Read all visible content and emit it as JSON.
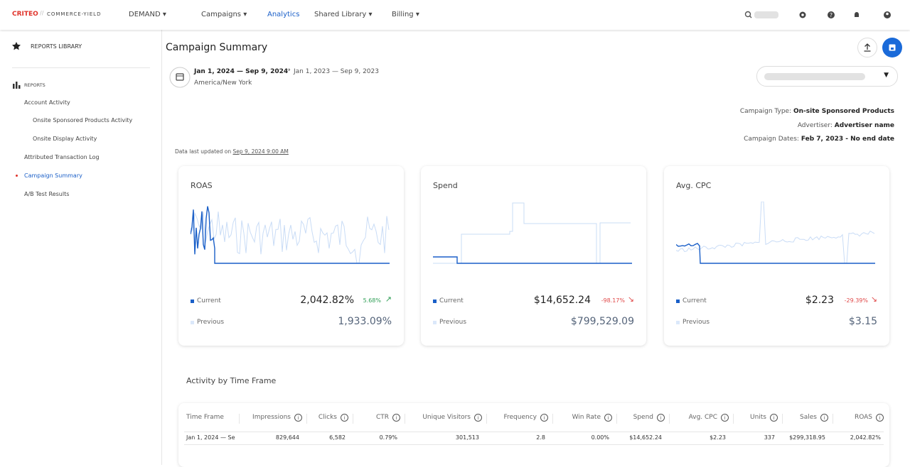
{
  "header": {
    "logo": "CRITEO",
    "product": "COMMERCE-YIELD",
    "menu": "DEMAND",
    "nav": [
      "Campaigns",
      "Analytics",
      "Shared Library",
      "Billing"
    ]
  },
  "sidebar": {
    "library": "REPORTS LIBRARY",
    "section": "REPORTS",
    "items": [
      "Account Activity",
      "Onsite Sponsored Products Activity",
      "Onsite Display Activity",
      "Attributed Transaction Log",
      "Campaign Summary",
      "A/B Test Results"
    ]
  },
  "page": {
    "title": "Campaign Summary",
    "date_range": "Jan 1, 2024 — Sep 9, 2024",
    "compare_range": "Jan 1, 2023 — Sep 9, 2023",
    "timezone": "America/New York",
    "updated_label": "Data last updated on",
    "updated_at": "Sep 9, 2024 9:00 AM",
    "details": [
      {
        "label": "Campaign Type:",
        "value": "On-site Sponsored Products"
      },
      {
        "label": "Advertiser:",
        "value": "Advertiser name"
      },
      {
        "label": "Campaign Dates:",
        "value": "Feb 7, 2023 - No end date"
      }
    ]
  },
  "kpis": [
    {
      "title": "ROAS",
      "current_label": "Current",
      "current": "2,042.82%",
      "change": "5.68%",
      "previous_label": "Previous",
      "previous": "1,933.09%"
    },
    {
      "title": "Spend",
      "current_label": "Current",
      "current": "$14,652.24",
      "change": "-98.17%",
      "previous_label": "Previous",
      "previous": "$799,529.09"
    },
    {
      "title": "Avg. CPC",
      "current_label": "Current",
      "current": "$2.23",
      "change": "-29.39%",
      "previous_label": "Previous",
      "previous": "$3.15"
    }
  ],
  "table": {
    "title": "Activity by Time Frame",
    "columns": [
      "Time Frame",
      "Impressions",
      "Clicks",
      "CTR",
      "Unique Visitors",
      "Frequency",
      "Win Rate",
      "Spend",
      "Avg. CPC",
      "Units",
      "Sales",
      "ROAS"
    ],
    "rows": [
      [
        "Jan 1, 2024 — Se",
        "829,644",
        "6,582",
        "0.79%",
        "301,513",
        "2.8",
        "0.00%",
        "$14,652.24",
        "$2.23",
        "337",
        "$299,318.95",
        "2,042.82%"
      ]
    ]
  }
}
